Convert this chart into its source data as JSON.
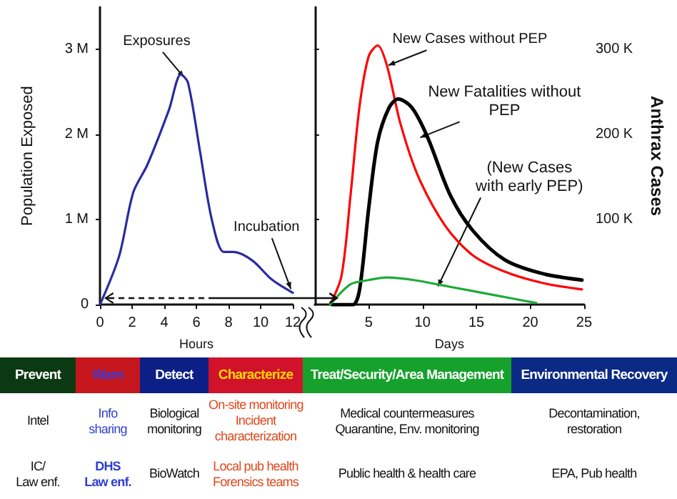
{
  "chart_data": [
    {
      "type": "line",
      "xlabel": "Hours",
      "ylabel": "Population Exposed",
      "marker": "none",
      "x": [
        0,
        1.19,
        2.07,
        2.96,
        4.29,
        5.04,
        5.48,
        6.22,
        6.96,
        7.7,
        8.3,
        9.48,
        10.67,
        12
      ],
      "series": [
        {
          "color": "#2b2ba0",
          "values": [
            0,
            570000,
            1320000,
            1650000,
            2290000,
            2710000,
            2610000,
            1810000,
            1000000,
            620000,
            620000,
            520000,
            300000,
            140000
          ]
        }
      ],
      "xlim": [
        0,
        12
      ],
      "xticks": [
        0,
        2,
        4,
        6,
        8,
        10,
        12
      ],
      "ylim": [
        0,
        3500000
      ],
      "yticks": [
        0,
        {
          "value": 1000000,
          "label": "1 M"
        },
        {
          "value": 2000000,
          "label": "2 M"
        },
        {
          "value": 3000000,
          "label": "3 M"
        }
      ],
      "annotations": [
        {
          "text": "Exposures",
          "x": 5.04,
          "y": 2710000
        },
        {
          "text": "Incubation",
          "x": 11.7,
          "y": 220000
        }
      ]
    },
    {
      "type": "line",
      "xlabel": "Days",
      "ylabel": "Anthrax Cases",
      "marker": "none",
      "series": [
        {
          "color": "#ff0000",
          "x": [
            1.42,
            2.48,
            3.32,
            4.16,
            5.0,
            5.84,
            6.68,
            7.95,
            9.63,
            12.15,
            14.68,
            17.6,
            20.99,
            24.8
          ],
          "values": [
            0,
            34000,
            129000,
            234000,
            292000,
            305000,
            282000,
            213000,
            150000,
            92000,
            58000,
            39000,
            26000,
            18000
          ]
        },
        {
          "color": "#000000",
          "x": [
            1.63,
            3.53,
            4.16,
            5.0,
            5.84,
            6.9,
            7.74,
            9.0,
            10.47,
            12.57,
            14.68,
            17.6,
            20.99,
            24.8
          ],
          "values": [
            0,
            0,
            18000,
            113000,
            192000,
            232000,
            242000,
            232000,
            197000,
            129000,
            87000,
            53000,
            37000,
            29000
          ]
        },
        {
          "color": "#1faa3a",
          "x": [
            1.42,
            3.32,
            5.0,
            6.68,
            9.2,
            12.57,
            16.78,
            20.57
          ],
          "values": [
            0,
            24000,
            29000,
            32000,
            29000,
            21000,
            11000,
            2000
          ]
        }
      ],
      "xlim": [
        0,
        25
      ],
      "xticks": [
        5,
        10,
        15,
        20,
        25
      ],
      "ylim": [
        0,
        350000
      ],
      "yticks": [
        {
          "value": 100000,
          "label": "100 K"
        },
        {
          "value": 200000,
          "label": "200 K"
        },
        {
          "value": 300000,
          "label": "300 K"
        }
      ],
      "annotations": [
        {
          "text": "New Cases without PEP",
          "x": 7.1,
          "y": 285000
        },
        {
          "text": "New Fatalities without\nPEP",
          "x": 10.05,
          "y": 200000
        },
        {
          "text": "(New Cases\nwith early PEP)",
          "x": 11.7,
          "y": 25000
        }
      ]
    },
    {
      "type": "other",
      "categories": [
        "Prevent",
        "Warn",
        "Detect",
        "Characterize",
        "Treat/Security/Area Management",
        "Environmental Recovery"
      ],
      "colors": [
        "#0b3a12",
        "#c4161c",
        "#0c1f86",
        "#d0122a",
        "#16a12c",
        "#0b2a86"
      ],
      "cell_labels": [
        [
          "Intel",
          "Info\nsharing",
          "Biological\nmonitoring",
          "On-site monitoring\nIncident\ncharacterization",
          "Medical countermeasures\nQuarantine, Env. monitoring",
          "Decontamination,\nrestoration"
        ],
        [
          "IC/\nLaw enf.",
          "DHS\nLaw enf.",
          "BioWatch",
          "Local pub health\nForensics teams",
          "Public health & health care",
          "EPA, Pub health"
        ]
      ]
    }
  ]
}
